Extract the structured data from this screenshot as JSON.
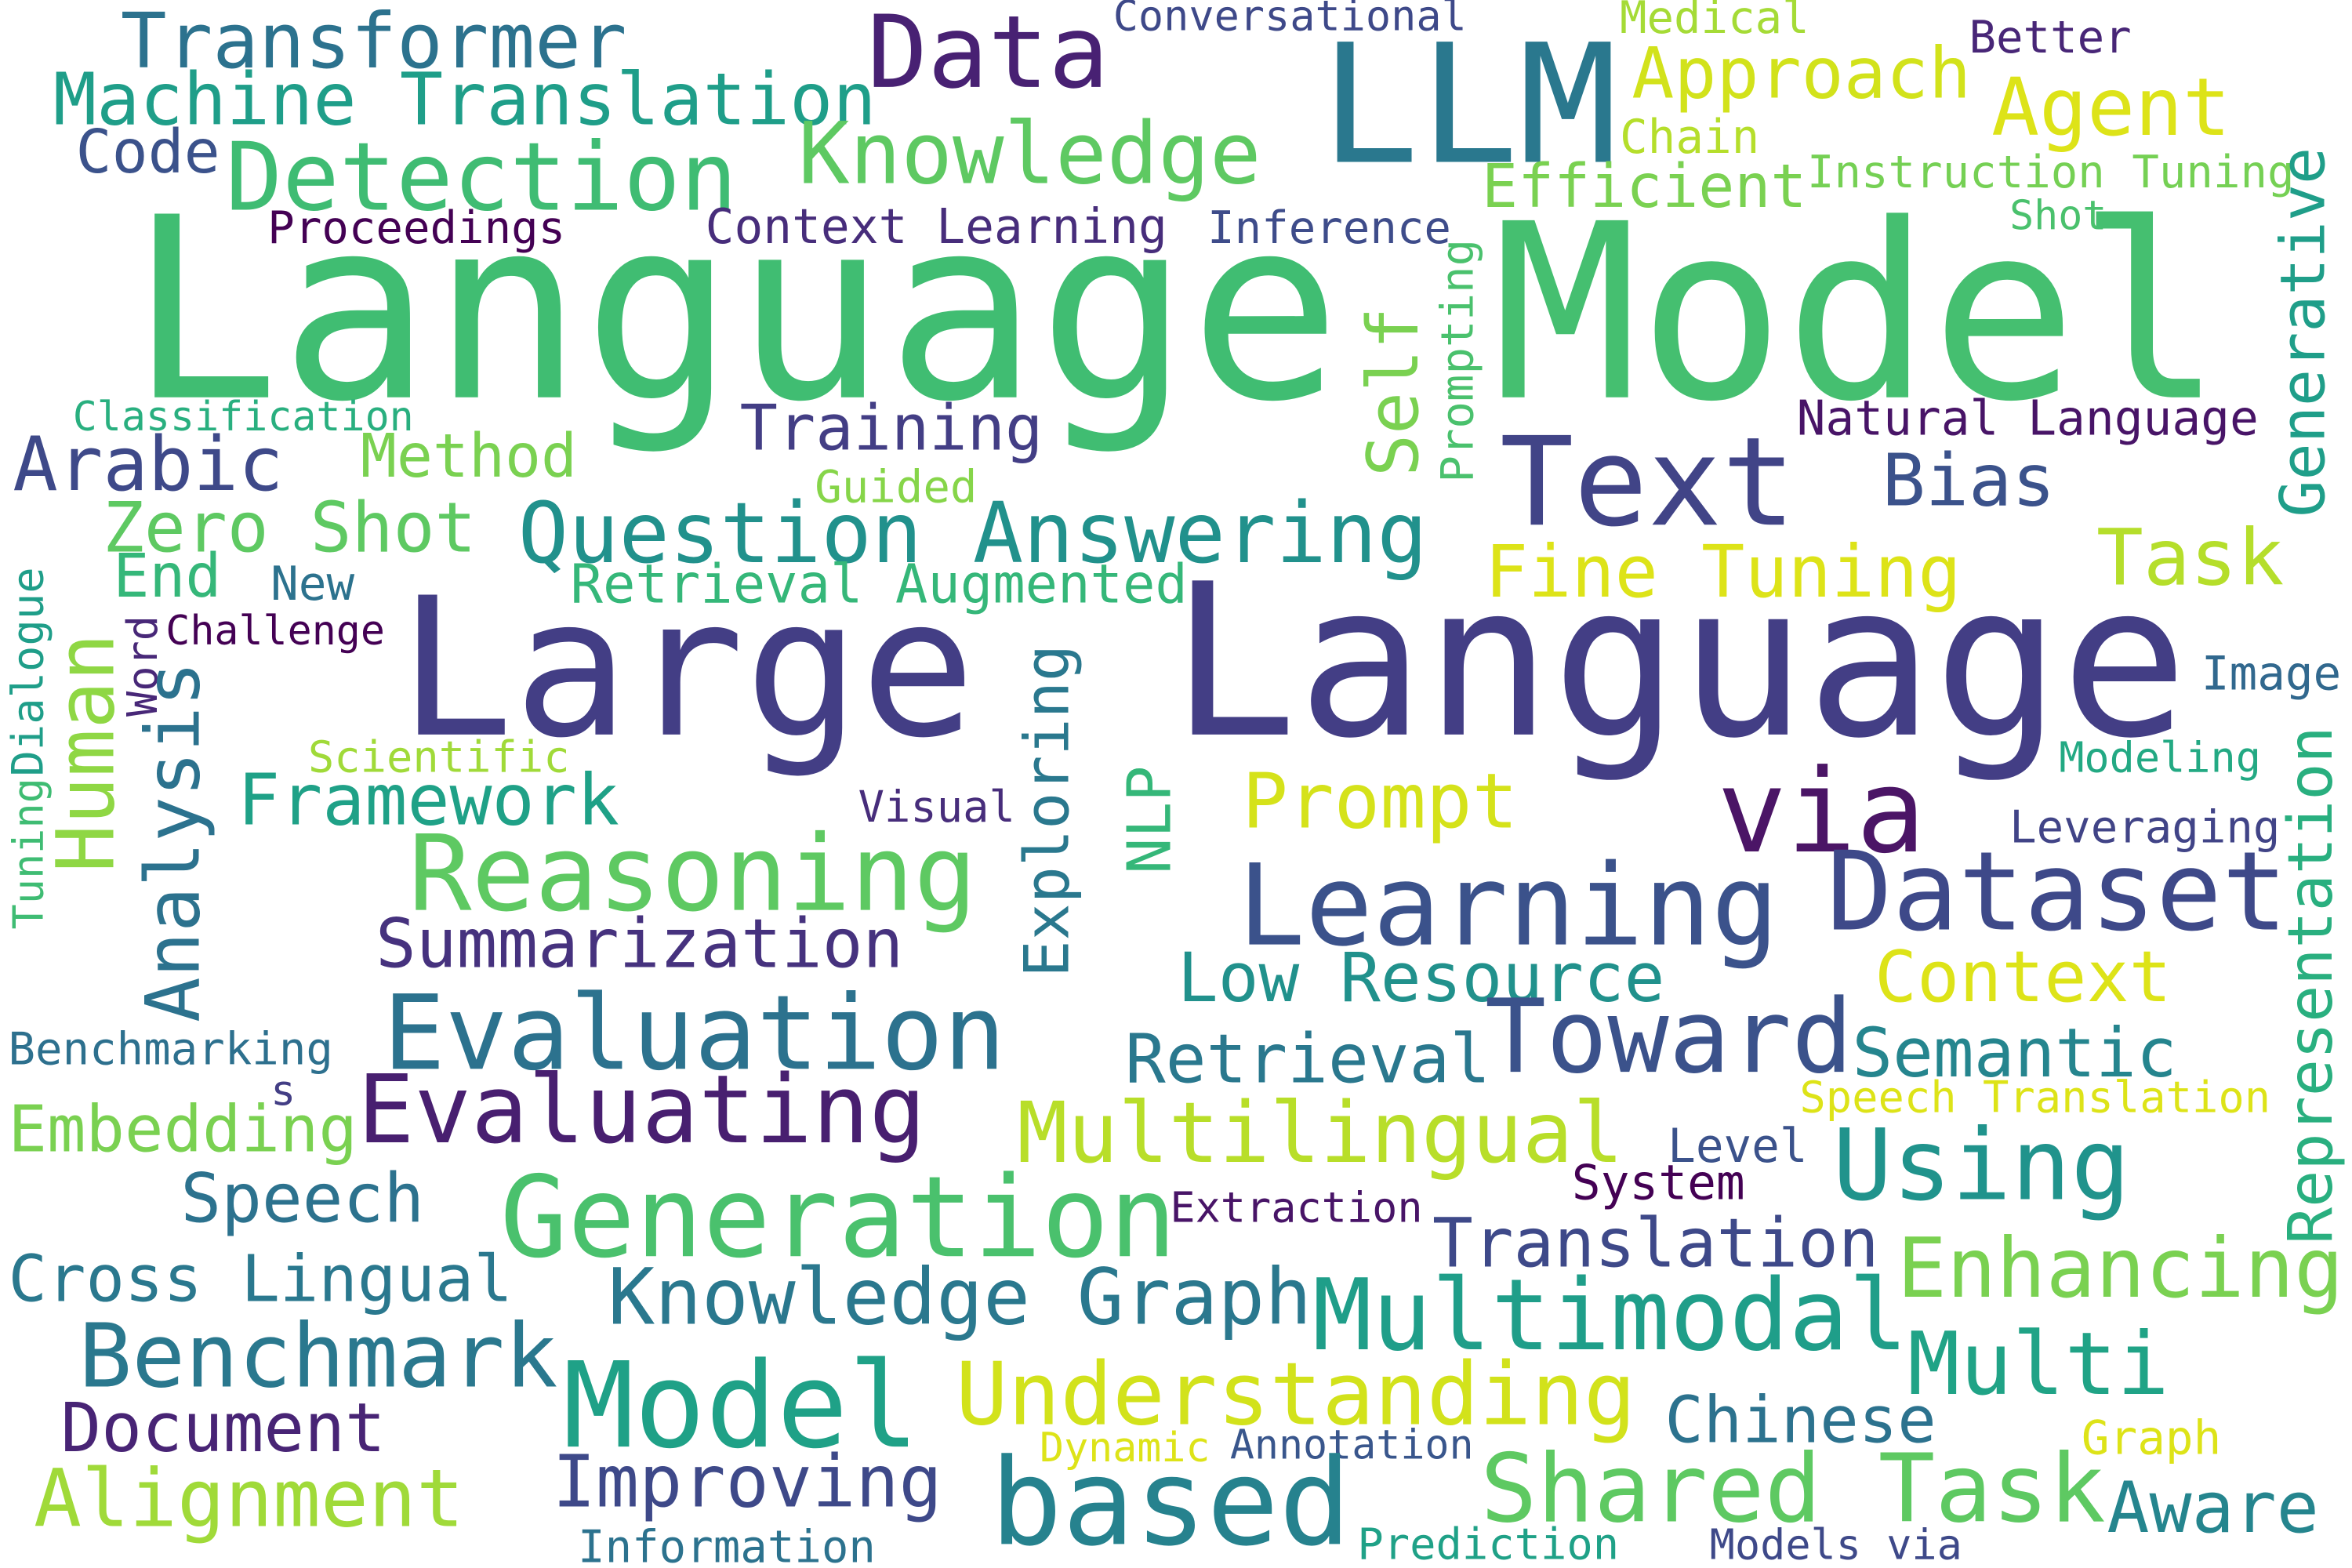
{
  "words": [
    "Transformer",
    "Machine Translation",
    "Code",
    "Detection",
    "Data",
    "Conversational",
    "LLM",
    "Medical",
    "Better",
    "Approach",
    "Agent",
    "Chain",
    "Knowledge",
    "Efficient",
    "Instruction Tuning",
    "Generative",
    "Shot",
    "Proceedings",
    "Context Learning",
    "Inference",
    "Language",
    "Model",
    "Prompting",
    "Self",
    "Classification",
    "Training",
    "Natural Language",
    "Arabic",
    "Method",
    "Guided",
    "Text",
    "Bias",
    "Zero Shot",
    "Question Answering",
    "Fine Tuning",
    "Task",
    "End",
    "New",
    "Retrieval Augmented",
    "Dialogue",
    "Tuning",
    "Word",
    "Challenge",
    "Human",
    "Analysis",
    "Large",
    "Language",
    "Exploring",
    "Image",
    "Scientific",
    "Modeling",
    "Framework",
    "Visual",
    "NLP",
    "Prompt",
    "via",
    "Leveraging",
    "Representation",
    "Reasoning",
    "Learning",
    "Dataset",
    "Summarization",
    "Low Resource",
    "Context",
    "Benchmarking",
    "s",
    "Evaluation",
    "Retrieval",
    "Toward",
    "Semantic",
    "Speech Translation",
    "Embedding",
    "Evaluating",
    "Multilingual",
    "Level",
    "System",
    "Using",
    "Speech",
    "Generation",
    "Extraction",
    "Translation",
    "Enhancing",
    "Cross Lingual",
    "Knowledge Graph",
    "Multimodal",
    "Benchmark",
    "Multi",
    "Model",
    "Understanding",
    "Document",
    "Chinese",
    "Dynamic",
    "Annotation",
    "Graph",
    "Alignment",
    "Improving",
    "based",
    "Shared Task",
    "Aware",
    "Information",
    "Prediction",
    "Models via"
  ]
}
